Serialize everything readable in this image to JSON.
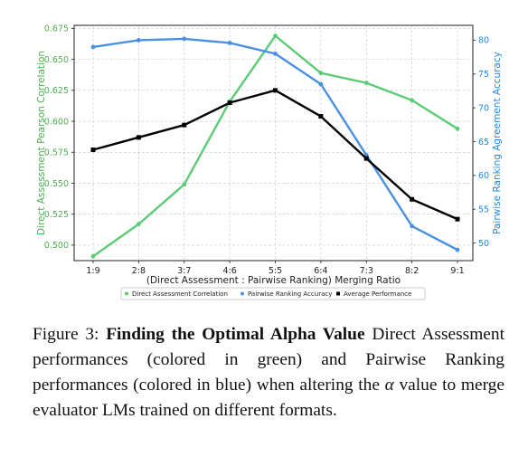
{
  "chart_data": {
    "type": "line",
    "categories": [
      "1:9",
      "2:8",
      "3:7",
      "4:6",
      "5:5",
      "6:4",
      "7:3",
      "8:2",
      "9:1"
    ],
    "xlabel": "(Direct Assessment : Pairwise Ranking) Merging Ratio",
    "ylabel_left": "Direct Assessment Pearson Correlation",
    "ylabel_right": "Pairwise Ranking Agreement Accuracy",
    "ylim_left": [
      0.4875,
      0.6775
    ],
    "ylim_right": [
      47.4,
      82.2
    ],
    "yticks_left": [
      "0.500",
      "0.525",
      "0.550",
      "0.575",
      "0.600",
      "0.625",
      "0.650",
      "0.675"
    ],
    "yticks_right": [
      "50",
      "55",
      "60",
      "65",
      "70",
      "75",
      "80"
    ],
    "grid": true,
    "legend_position": "bottom-center",
    "series": [
      {
        "name": "Direct Assessment Correlation",
        "axis": "left",
        "color": "#5ccb75",
        "marker": "circle",
        "values": [
          0.491,
          0.517,
          0.549,
          0.616,
          0.669,
          0.639,
          0.631,
          0.617,
          0.594
        ]
      },
      {
        "name": "Pairwise Ranking Accuracy",
        "axis": "right",
        "color": "#4a90e2",
        "marker": "circle",
        "values": [
          79.0,
          80.0,
          80.2,
          79.6,
          78.0,
          73.5,
          63.0,
          52.5,
          49.0
        ]
      },
      {
        "name": "Average Performance",
        "axis": "left",
        "color": "#000000",
        "marker": "square",
        "values": [
          0.577,
          0.587,
          0.597,
          0.615,
          0.625,
          0.604,
          0.57,
          0.537,
          0.521
        ]
      }
    ]
  },
  "caption": {
    "label": "Figure 3:",
    "title": "Finding the Optimal Alpha Value",
    "text_before_alpha": "Direct Assessment performances (colored in green) and Pairwise Ranking performances (colored in blue) when altering the",
    "alpha_symbol": "α",
    "text_after_alpha": "value to merge evaluator LMs trained on different formats."
  }
}
